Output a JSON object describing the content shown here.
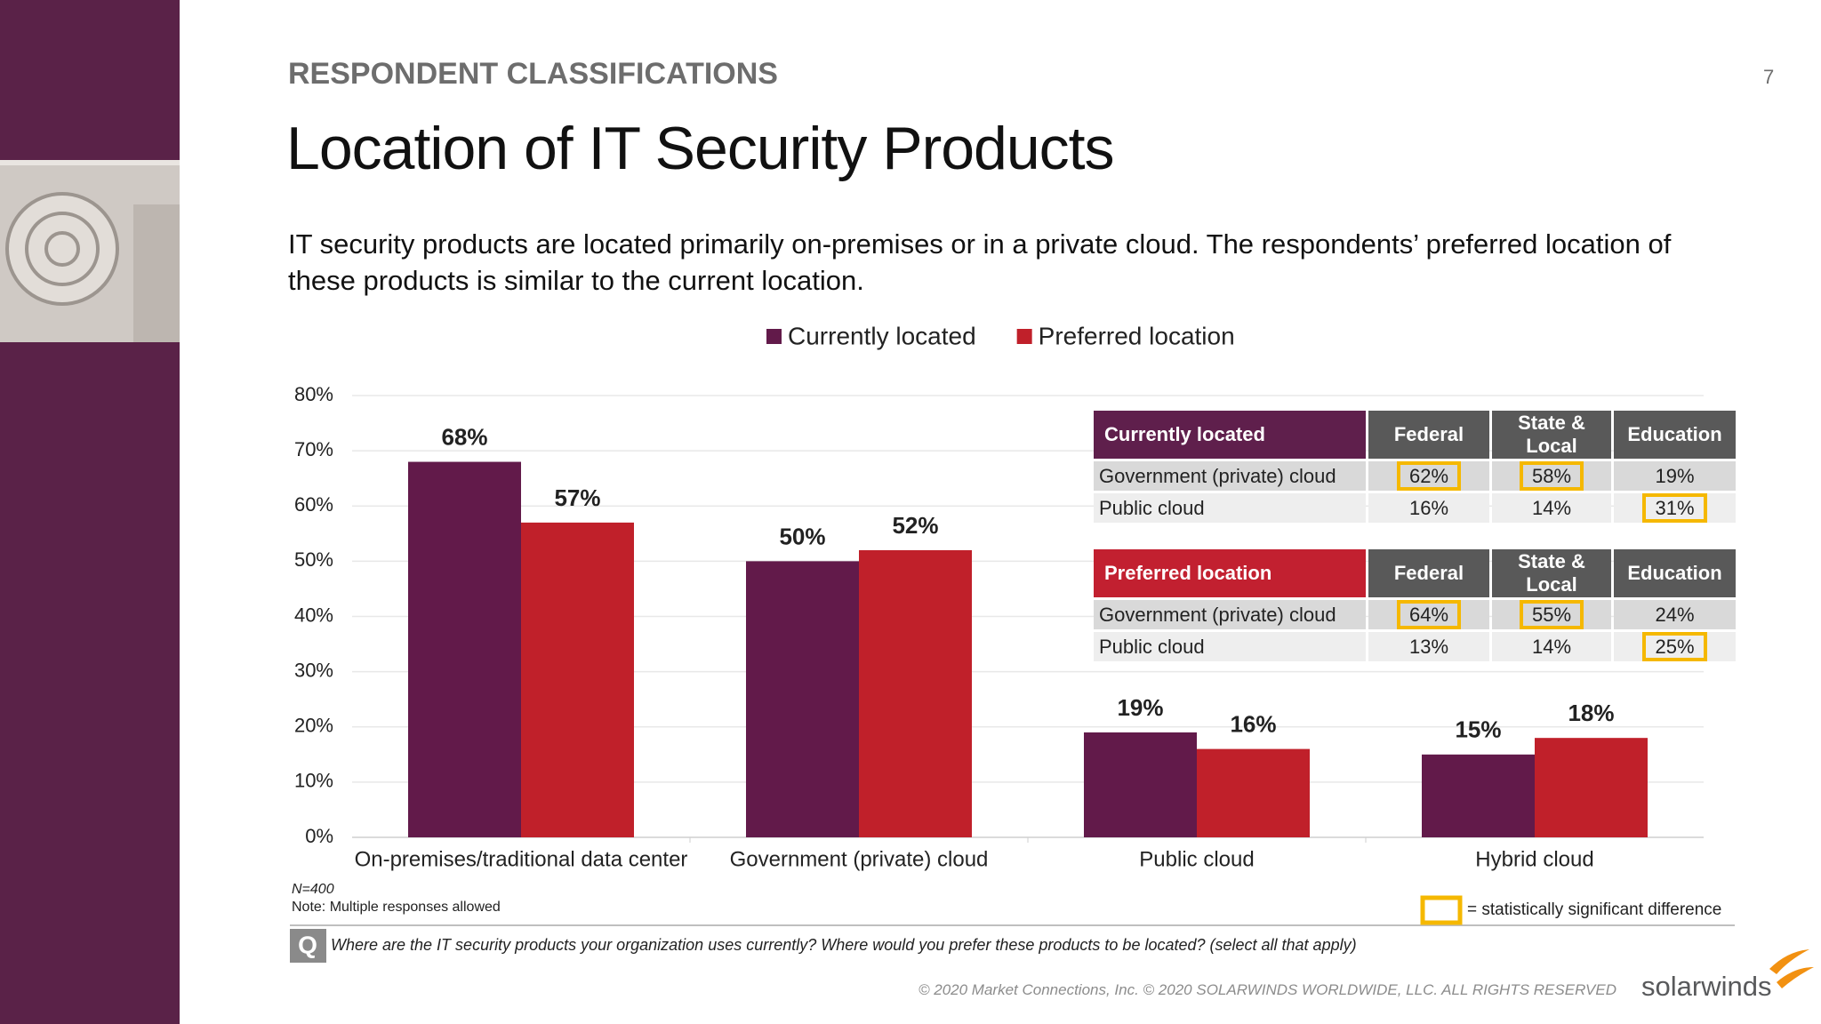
{
  "header": {
    "section": "RESPONDENT CLASSIFICATIONS",
    "page_number": "7",
    "title": "Location of IT Security Products",
    "subtitle": "IT security products are located primarily on-premises or in a private cloud. The respondents’ preferred location of these products is similar to the current location."
  },
  "chart_data": {
    "type": "bar",
    "categories": [
      "On-premises/traditional data center",
      "Government (private) cloud",
      "Public cloud",
      "Hybrid cloud"
    ],
    "series": [
      {
        "name": "Currently located",
        "color": "#621a4a",
        "values": [
          68,
          50,
          19,
          15
        ],
        "value_labels": [
          "68%",
          "50%",
          "19%",
          "15%"
        ]
      },
      {
        "name": "Preferred location",
        "color": "#c0202a",
        "values": [
          57,
          52,
          16,
          18
        ],
        "value_labels": [
          "57%",
          "52%",
          "16%",
          "18%"
        ]
      }
    ],
    "ylim": [
      0,
      80
    ],
    "yticks": [
      {
        "value": 0,
        "label": "0%"
      },
      {
        "value": 10,
        "label": "10%"
      },
      {
        "value": 20,
        "label": "20%"
      },
      {
        "value": 30,
        "label": "30%"
      },
      {
        "value": 40,
        "label": "40%"
      },
      {
        "value": 50,
        "label": "50%"
      },
      {
        "value": 60,
        "label": "60%"
      },
      {
        "value": 70,
        "label": "70%"
      },
      {
        "value": 80,
        "label": "80%"
      }
    ],
    "grid": true,
    "legend": "top"
  },
  "tables": [
    {
      "header": [
        "Currently located",
        "Federal",
        "State & Local",
        "Education"
      ],
      "header_color": "#5f1f4c",
      "rows": [
        [
          "Government (private) cloud",
          {
            "text": "62%",
            "significant": true
          },
          {
            "text": "58%",
            "significant": true
          },
          "19%"
        ],
        [
          "Public cloud",
          "16%",
          "14%",
          {
            "text": "31%",
            "significant": true
          }
        ]
      ]
    },
    {
      "header": [
        "Preferred location",
        "Federal",
        "State & Local",
        "Education"
      ],
      "header_color": "#c22030",
      "rows": [
        [
          "Government (private) cloud",
          {
            "text": "64%",
            "significant": true
          },
          {
            "text": "55%",
            "significant": true
          },
          "24%"
        ],
        [
          "Public cloud",
          "13%",
          "14%",
          {
            "text": "25%",
            "significant": true
          }
        ]
      ]
    }
  ],
  "notes": {
    "n": "N=400",
    "note": "Note: Multiple responses allowed",
    "significance_legend": "= statistically significant difference",
    "question_icon": "Q",
    "question": "Where are the IT security products your organization uses currently? Where would you prefer these products to be located? (select all that apply)"
  },
  "footer": {
    "copyright": "© 2020 Market Connections, Inc. © 2020 SOLARWINDS WORLDWIDE, LLC. ALL RIGHTS RESERVED",
    "logo": "solarwinds"
  }
}
